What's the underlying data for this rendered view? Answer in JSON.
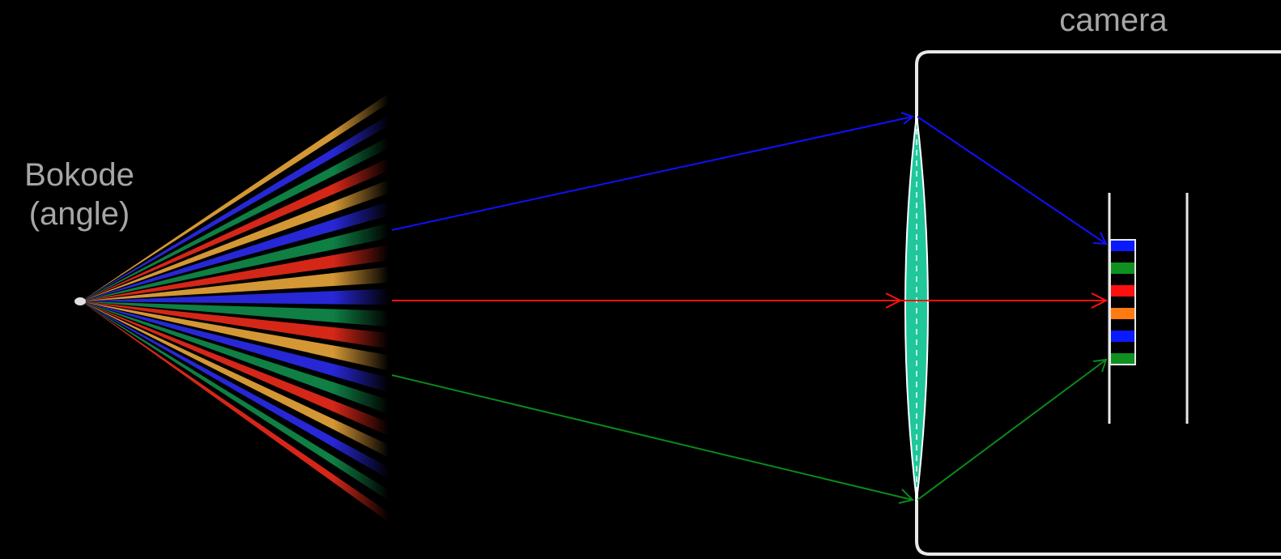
{
  "labels": {
    "bokode_line1": "Bokode",
    "bokode_line2": "(angle)",
    "camera": "camera"
  },
  "colors": {
    "background": "#000000",
    "label_text": "#a6a6a6",
    "ray_blue": "#1010ff",
    "ray_red": "#ff1010",
    "ray_green": "#0a8a1a",
    "lens_fill": "#1fc79a",
    "camera_frame": "#e8e8e8",
    "fan_colors": [
      "#e6a43a",
      "#2a2ae8",
      "#108a4a",
      "#e62a1a"
    ],
    "code_cells": [
      "#0a1aff",
      "#000000",
      "#109020",
      "#000000",
      "#ff1010",
      "#000000",
      "#ff7a10",
      "#000000",
      "#0a1aff",
      "#000000",
      "#109020"
    ]
  },
  "components": [
    "bokode-fan",
    "light-rays",
    "lens",
    "camera-body",
    "sensor-plane",
    "code-pattern"
  ]
}
